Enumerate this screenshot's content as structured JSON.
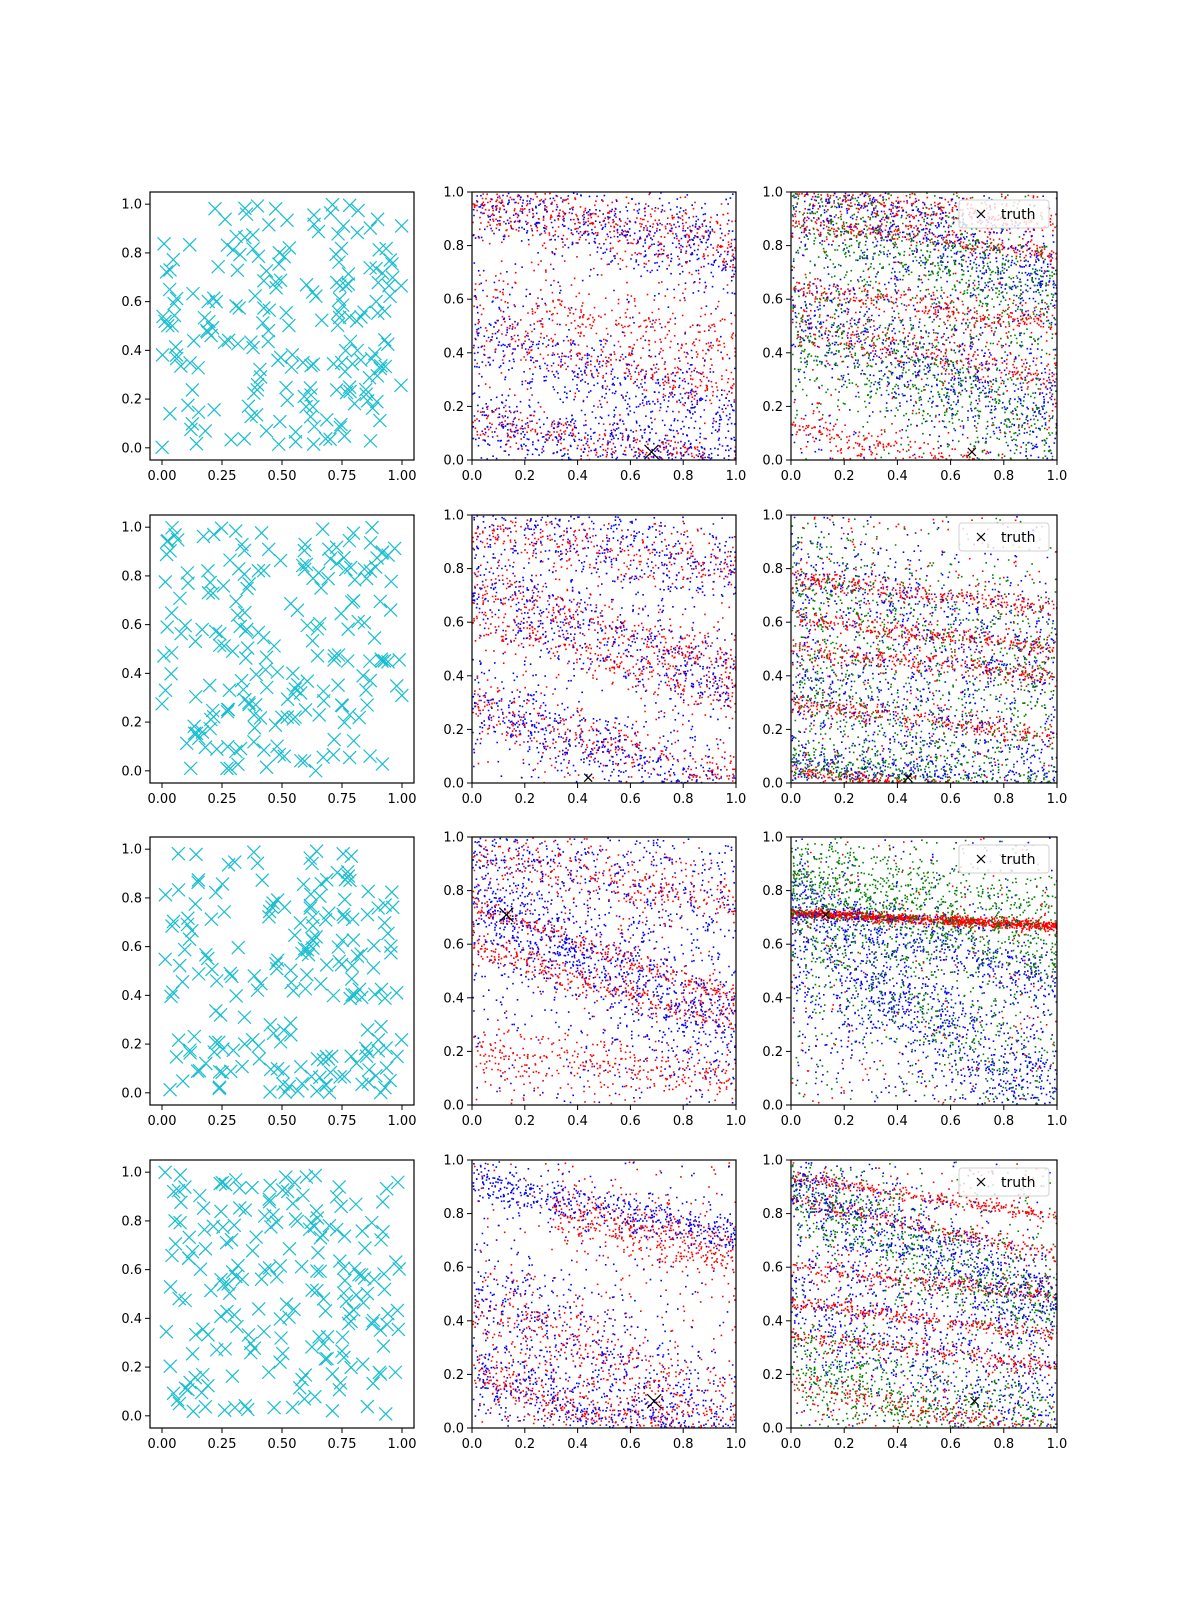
{
  "figure": {
    "layout": "4 rows x 3 columns",
    "background": "#ffffff"
  },
  "colors": {
    "cyan": "#17becf",
    "red": "#ff0000",
    "blue": "#0000ff",
    "green": "#008000",
    "black": "#000000"
  },
  "chart_data": [
    {
      "row": 0,
      "col": 0,
      "type": "scatter",
      "marker": "x",
      "color": "#17becf",
      "n_points": 200,
      "xlim": [
        -0.05,
        1.05
      ],
      "ylim": [
        -0.05,
        1.05
      ],
      "xticks": [
        "0.00",
        "0.25",
        "0.50",
        "0.75",
        "1.00"
      ],
      "yticks": [
        "0.0",
        "0.2",
        "0.4",
        "0.6",
        "0.8",
        "1.0"
      ],
      "seed": 11
    },
    {
      "row": 0,
      "col": 1,
      "type": "scatter",
      "xlim": [
        0,
        1
      ],
      "ylim": [
        0,
        1
      ],
      "xticks": [
        "0.0",
        "0.2",
        "0.4",
        "0.6",
        "0.8",
        "1.0"
      ],
      "yticks": [
        "0.0",
        "0.2",
        "0.4",
        "0.6",
        "0.8",
        "1.0"
      ],
      "seed": 21,
      "series": [
        {
          "name": "red",
          "color": "#ff0000",
          "n": 1500,
          "bands": [
            [
              0.0,
              1.0,
              -0.15,
              0.05
            ],
            [
              0.0,
              0.47,
              -0.2,
              0.05
            ],
            [
              0.0,
              0.14,
              -0.15,
              0.04
            ],
            [
              0.0,
              0.62,
              -0.2,
              0.06
            ],
            [
              0.0,
              0.93,
              -0.18,
              0.05
            ]
          ]
        },
        {
          "name": "blue",
          "color": "#0000ff",
          "n": 1600,
          "bands": [
            [
              0.0,
              1.0,
              -0.25,
              0.08
            ],
            [
              0.0,
              0.48,
              -0.35,
              0.09
            ],
            [
              0.0,
              0.15,
              -0.2,
              0.07
            ]
          ]
        }
      ],
      "truth": {
        "x": 0.68,
        "y": 0.03,
        "size": "large"
      }
    },
    {
      "row": 0,
      "col": 2,
      "type": "scatter",
      "xlim": [
        0,
        1
      ],
      "ylim": [
        0,
        1
      ],
      "xticks": [
        "0.0",
        "0.2",
        "0.4",
        "0.6",
        "0.8",
        "1.0"
      ],
      "yticks": [
        "0.0",
        "0.2",
        "0.4",
        "0.6",
        "0.8",
        "1.0"
      ],
      "seed": 31,
      "series": [
        {
          "name": "red",
          "color": "#ff0000",
          "n": 1800,
          "bands": [
            [
              0.0,
              1.0,
              -0.12,
              0.03
            ],
            [
              0.0,
              0.89,
              -0.12,
              0.02
            ],
            [
              0.0,
              0.5,
              -0.2,
              0.04
            ],
            [
              0.0,
              0.12,
              -0.2,
              0.03
            ],
            [
              0.0,
              0.65,
              -0.15,
              0.03
            ]
          ]
        },
        {
          "name": "blue",
          "color": "#0000ff",
          "n": 1500,
          "bands": [
            [
              0.0,
              1.0,
              -0.35,
              0.1
            ],
            [
              0.0,
              0.55,
              -0.4,
              0.12
            ]
          ]
        },
        {
          "name": "green",
          "color": "#008000",
          "n": 1500,
          "bands": [
            [
              0.0,
              0.95,
              -0.35,
              0.12
            ],
            [
              0.0,
              0.5,
              -0.4,
              0.12
            ]
          ]
        }
      ],
      "truth": {
        "x": 0.68,
        "y": 0.03,
        "size": "small"
      },
      "legend": {
        "label": "truth",
        "marker": "×",
        "placement": "upper right"
      }
    },
    {
      "row": 1,
      "col": 0,
      "type": "scatter",
      "marker": "x",
      "color": "#17becf",
      "n_points": 200,
      "xlim": [
        -0.05,
        1.05
      ],
      "ylim": [
        -0.05,
        1.05
      ],
      "xticks": [
        "0.00",
        "0.25",
        "0.50",
        "0.75",
        "1.00"
      ],
      "yticks": [
        "0.0",
        "0.2",
        "0.4",
        "0.6",
        "0.8",
        "1.0"
      ],
      "seed": 12
    },
    {
      "row": 1,
      "col": 1,
      "type": "scatter",
      "xlim": [
        0,
        1
      ],
      "ylim": [
        0,
        1
      ],
      "xticks": [
        "0.0",
        "0.2",
        "0.4",
        "0.6",
        "0.8",
        "1.0"
      ],
      "yticks": [
        "0.0",
        "0.2",
        "0.4",
        "0.6",
        "0.8",
        "1.0"
      ],
      "seed": 22,
      "series": [
        {
          "name": "red",
          "color": "#ff0000",
          "n": 1400,
          "bands": [
            [
              0.0,
              0.75,
              -0.3,
              0.04
            ],
            [
              0.0,
              0.3,
              -0.3,
              0.05
            ],
            [
              0.0,
              0.95,
              -0.15,
              0.05
            ],
            [
              0.0,
              0.62,
              -0.3,
              0.04
            ]
          ]
        },
        {
          "name": "blue",
          "color": "#0000ff",
          "n": 1600,
          "bands": [
            [
              0.0,
              0.72,
              -0.35,
              0.08
            ],
            [
              0.0,
              0.3,
              -0.35,
              0.08
            ],
            [
              0.0,
              1.0,
              -0.2,
              0.1
            ]
          ]
        }
      ],
      "truth": {
        "x": 0.44,
        "y": 0.02,
        "size": "small"
      }
    },
    {
      "row": 1,
      "col": 2,
      "type": "scatter",
      "xlim": [
        0,
        1
      ],
      "ylim": [
        0,
        1
      ],
      "xticks": [
        "0.0",
        "0.2",
        "0.4",
        "0.6",
        "0.8",
        "1.0"
      ],
      "yticks": [
        "0.0",
        "0.2",
        "0.4",
        "0.6",
        "0.8",
        "1.0"
      ],
      "seed": 32,
      "series": [
        {
          "name": "red",
          "color": "#ff0000",
          "n": 1800,
          "bands": [
            [
              0.0,
              0.05,
              -0.1,
              0.012
            ],
            [
              0.0,
              0.77,
              -0.12,
              0.02
            ],
            [
              0.0,
              0.62,
              -0.12,
              0.02
            ],
            [
              0.0,
              0.3,
              -0.12,
              0.02
            ],
            [
              0.0,
              0.5,
              -0.1,
              0.02
            ]
          ]
        },
        {
          "name": "blue",
          "color": "#0000ff",
          "n": 1600,
          "bands": [
            [
              0.0,
              0.8,
              -0.35,
              0.12
            ],
            [
              0.0,
              0.4,
              -0.35,
              0.12
            ],
            [
              0.0,
              0.08,
              -0.15,
              0.05
            ]
          ]
        },
        {
          "name": "green",
          "color": "#008000",
          "n": 1500,
          "bands": [
            [
              0.0,
              0.75,
              -0.35,
              0.12
            ],
            [
              0.0,
              0.4,
              -0.4,
              0.12
            ],
            [
              0.0,
              0.08,
              -0.15,
              0.05
            ]
          ]
        }
      ],
      "truth": {
        "x": 0.44,
        "y": 0.02,
        "size": "small"
      },
      "legend": {
        "label": "truth",
        "marker": "×",
        "placement": "upper right"
      }
    },
    {
      "row": 2,
      "col": 0,
      "type": "scatter",
      "marker": "x",
      "color": "#17becf",
      "n_points": 200,
      "xlim": [
        -0.05,
        1.05
      ],
      "ylim": [
        -0.05,
        1.05
      ],
      "xticks": [
        "0.00",
        "0.25",
        "0.50",
        "0.75",
        "1.00"
      ],
      "yticks": [
        "0.0",
        "0.2",
        "0.4",
        "0.6",
        "0.8",
        "1.0"
      ],
      "seed": 13
    },
    {
      "row": 2,
      "col": 1,
      "type": "scatter",
      "xlim": [
        0,
        1
      ],
      "ylim": [
        0,
        1
      ],
      "xticks": [
        "0.0",
        "0.2",
        "0.4",
        "0.6",
        "0.8",
        "1.0"
      ],
      "yticks": [
        "0.0",
        "0.2",
        "0.4",
        "0.6",
        "0.8",
        "1.0"
      ],
      "seed": 23,
      "series": [
        {
          "name": "red",
          "color": "#ff0000",
          "n": 1500,
          "bands": [
            [
              0.0,
              0.75,
              -0.35,
              0.02
            ],
            [
              0.0,
              0.6,
              -0.3,
              0.03
            ],
            [
              0.0,
              0.95,
              -0.2,
              0.05
            ],
            [
              0.0,
              0.2,
              -0.1,
              0.05
            ]
          ]
        },
        {
          "name": "blue",
          "color": "#0000ff",
          "n": 1600,
          "bands": [
            [
              0.0,
              0.74,
              -0.45,
              0.06
            ],
            [
              0.0,
              0.8,
              -0.6,
              0.2
            ],
            [
              0.0,
              1.0,
              -0.2,
              0.15
            ]
          ]
        }
      ],
      "truth": {
        "x": 0.13,
        "y": 0.71,
        "size": "large"
      }
    },
    {
      "row": 2,
      "col": 2,
      "type": "scatter",
      "xlim": [
        0,
        1
      ],
      "ylim": [
        0,
        1
      ],
      "xticks": [
        "0.0",
        "0.2",
        "0.4",
        "0.6",
        "0.8",
        "1.0"
      ],
      "yticks": [
        "0.0",
        "0.2",
        "0.4",
        "0.6",
        "0.8",
        "1.0"
      ],
      "seed": 33,
      "series": [
        {
          "name": "red",
          "color": "#ff0000",
          "n": 1400,
          "bands": [
            [
              0.0,
              0.72,
              -0.05,
              0.01
            ]
          ]
        },
        {
          "name": "blue",
          "color": "#0000ff",
          "n": 1700,
          "bands": [
            [
              0.0,
              0.8,
              -0.35,
              0.06
            ],
            [
              0.0,
              0.7,
              -0.7,
              0.1
            ],
            [
              0.0,
              0.5,
              -0.45,
              0.15
            ]
          ]
        },
        {
          "name": "green",
          "color": "#008000",
          "n": 1600,
          "bands": [
            [
              0.0,
              0.82,
              -0.3,
              0.07
            ],
            [
              0.0,
              0.7,
              -0.65,
              0.12
            ],
            [
              0.0,
              0.9,
              -0.2,
              0.08
            ]
          ]
        }
      ],
      "truth": {
        "x": 0.13,
        "y": 0.71,
        "size": "small"
      },
      "legend": {
        "label": "truth",
        "marker": "×",
        "placement": "upper right"
      }
    },
    {
      "row": 3,
      "col": 0,
      "type": "scatter",
      "marker": "x",
      "color": "#17becf",
      "n_points": 200,
      "xlim": [
        -0.05,
        1.05
      ],
      "ylim": [
        -0.05,
        1.05
      ],
      "xticks": [
        "0.00",
        "0.25",
        "0.50",
        "0.75",
        "1.00"
      ],
      "yticks": [
        "0.0",
        "0.2",
        "0.4",
        "0.6",
        "0.8",
        "1.0"
      ],
      "seed": 14
    },
    {
      "row": 3,
      "col": 1,
      "type": "scatter",
      "xlim": [
        0,
        1
      ],
      "ylim": [
        0,
        1
      ],
      "xticks": [
        "0.0",
        "0.2",
        "0.4",
        "0.6",
        "0.8",
        "1.0"
      ],
      "yticks": [
        "0.0",
        "0.2",
        "0.4",
        "0.6",
        "0.8",
        "1.0"
      ],
      "seed": 24,
      "series": [
        {
          "name": "red",
          "color": "#ff0000",
          "n": 1500,
          "bands": [
            [
              0.0,
              0.2,
              -0.3,
              0.05
            ],
            [
              0.0,
              0.45,
              -0.4,
              0.1
            ],
            [
              0.3,
              0.9,
              -0.25,
              0.06
            ]
          ]
        },
        {
          "name": "blue",
          "color": "#0000ff",
          "n": 1600,
          "bands": [
            [
              0.0,
              0.2,
              -0.3,
              0.06
            ],
            [
              0.0,
              0.5,
              -0.5,
              0.12
            ],
            [
              0.0,
              0.92,
              -0.2,
              0.04
            ]
          ]
        }
      ],
      "truth": {
        "x": 0.69,
        "y": 0.1,
        "size": "large"
      }
    },
    {
      "row": 3,
      "col": 2,
      "type": "scatter",
      "xlim": [
        0,
        1
      ],
      "ylim": [
        0,
        1
      ],
      "xticks": [
        "0.0",
        "0.2",
        "0.4",
        "0.6",
        "0.8",
        "1.0"
      ],
      "yticks": [
        "0.0",
        "0.2",
        "0.4",
        "0.6",
        "0.8",
        "1.0"
      ],
      "seed": 34,
      "series": [
        {
          "name": "red",
          "color": "#ff0000",
          "n": 1800,
          "bands": [
            [
              0.0,
              0.94,
              -0.15,
              0.012
            ],
            [
              0.0,
              0.85,
              -0.2,
              0.015
            ],
            [
              0.0,
              0.35,
              -0.12,
              0.015
            ],
            [
              0.0,
              0.47,
              -0.12,
              0.015
            ],
            [
              0.0,
              0.17,
              -0.2,
              0.03
            ],
            [
              0.0,
              0.6,
              -0.1,
              0.02
            ]
          ]
        },
        {
          "name": "blue",
          "color": "#0000ff",
          "n": 1700,
          "bands": [
            [
              0.0,
              0.9,
              -0.45,
              0.08
            ],
            [
              0.0,
              0.5,
              -0.4,
              0.15
            ]
          ]
        },
        {
          "name": "green",
          "color": "#008000",
          "n": 1500,
          "bands": [
            [
              0.0,
              0.88,
              -0.45,
              0.1
            ],
            [
              0.0,
              0.25,
              -0.3,
              0.1
            ]
          ]
        }
      ],
      "truth": {
        "x": 0.69,
        "y": 0.1,
        "size": "small"
      },
      "legend": {
        "label": "truth",
        "marker": "×",
        "placement": "upper right"
      }
    }
  ]
}
